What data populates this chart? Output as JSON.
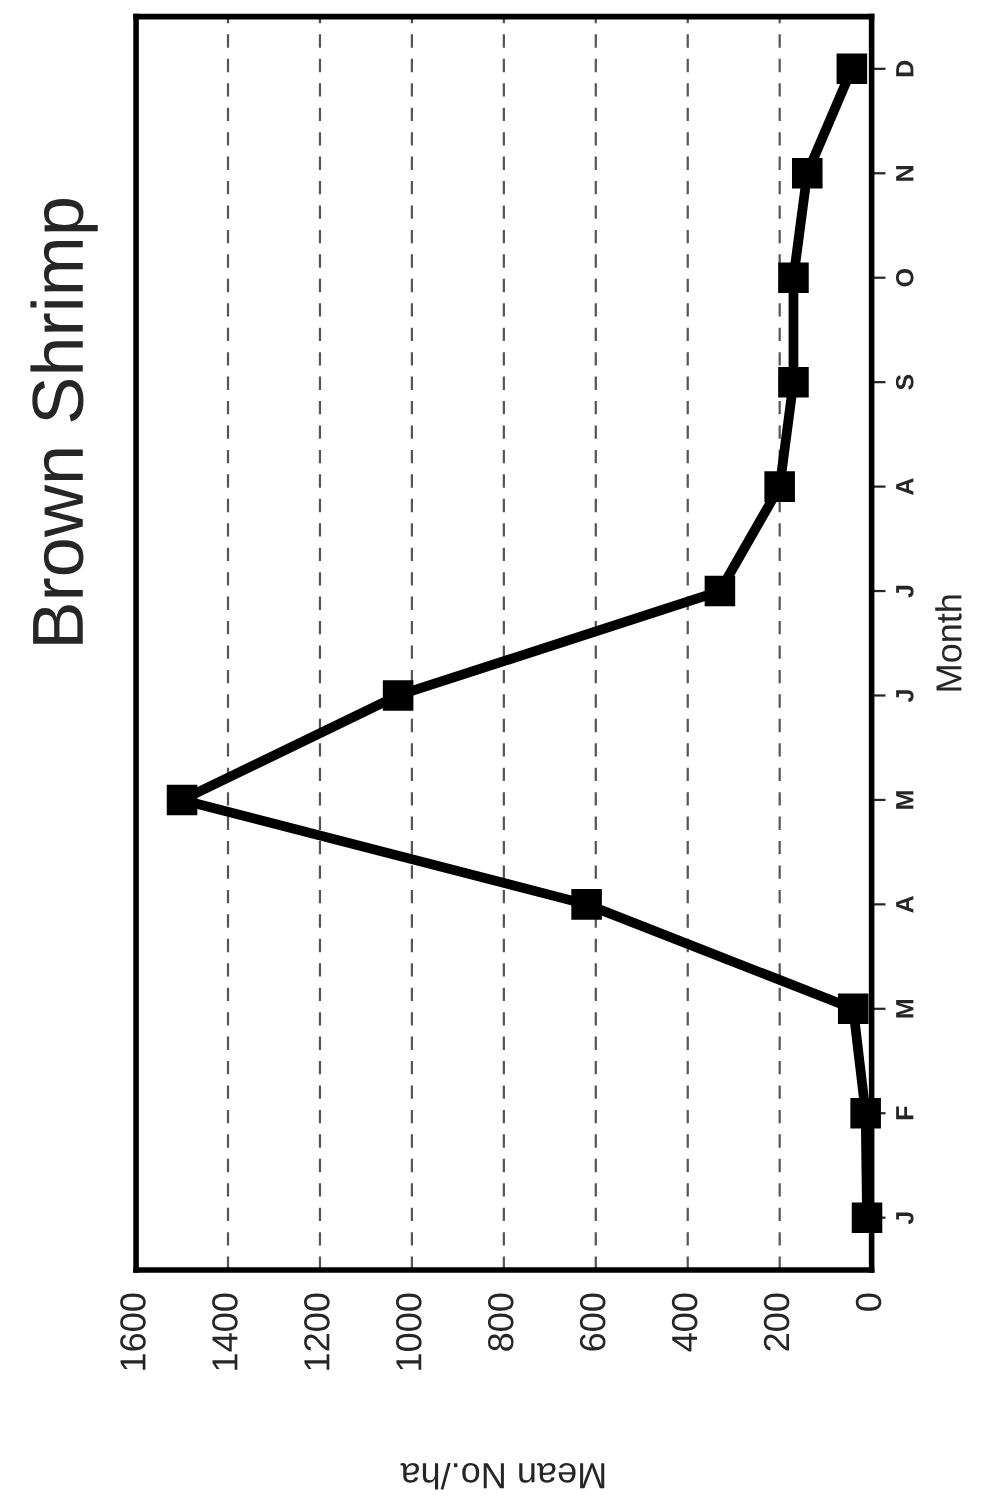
{
  "chart_data": {
    "type": "line",
    "orientation": "horizontal",
    "title": "Brown Shrimp",
    "xlabel": "Mean No./ha",
    "ylabel": "Month",
    "categories": [
      "D",
      "N",
      "O",
      "S",
      "A",
      "J",
      "J",
      "M",
      "A",
      "M",
      "F",
      "J"
    ],
    "series": [
      {
        "color": "#000000",
        "values": [
          43,
          140,
          170,
          170,
          200,
          330,
          1030,
          1500,
          620,
          40,
          13,
          10
        ]
      }
    ],
    "xlim": [
      1600,
      0
    ],
    "xticks": [
      0,
      200,
      400,
      600,
      800,
      1000,
      1200,
      1400,
      1600
    ],
    "grid": "x",
    "marker": "square",
    "line_style": "solid",
    "legend": false
  }
}
